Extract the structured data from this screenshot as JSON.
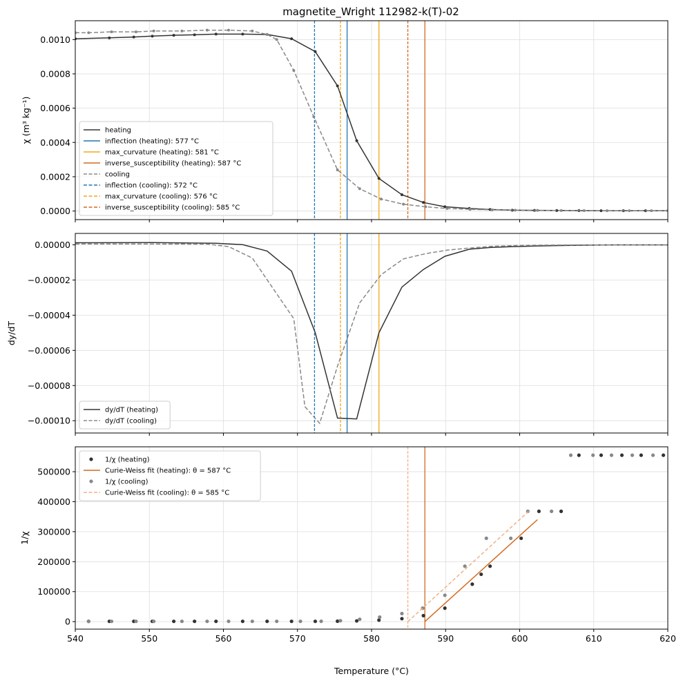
{
  "figure": {
    "title": "magnetite_Wright 112982-k(T)-02"
  },
  "colors": {
    "heating": "#333333",
    "cooling": "#888888",
    "inflection": "#1f77b4",
    "max_curvature": "#f0a818",
    "inverse_susceptibility": "#d2691e",
    "cw_cooling": "#f0b088",
    "grid": "#dddddd"
  },
  "chart_data": [
    {
      "type": "line",
      "ylabel": "χ (m³ kg⁻¹)",
      "xlim": [
        540,
        620
      ],
      "ylim": [
        -5e-05,
        0.00111
      ],
      "yticks": [
        0.0,
        0.0002,
        0.0004,
        0.0006,
        0.0008,
        0.001
      ],
      "ytick_labels": [
        "0.0000",
        "0.0002",
        "0.0004",
        "0.0006",
        "0.0008",
        "0.0010"
      ],
      "grid": true,
      "legend_position": "lower-left",
      "series": [
        {
          "name": "heating",
          "kind": "line-markers",
          "x": [
            540,
            544.6,
            547.9,
            550.4,
            553.3,
            556.1,
            559,
            562.6,
            565.9,
            569.2,
            572.4,
            575.4,
            578,
            581,
            584.1,
            587,
            589.9,
            593.2,
            596,
            599,
            602,
            605,
            608,
            611,
            614,
            617,
            620
          ],
          "y": [
            0.001005,
            0.00101,
            0.001015,
            0.00102,
            0.001025,
            0.001028,
            0.001032,
            0.001032,
            0.00103,
            0.001005,
            0.00093,
            0.00073,
            0.00041,
            0.00019,
            9.5e-05,
            5e-05,
            2.5e-05,
            1.5e-05,
            9e-06,
            5e-06,
            4e-06,
            3e-06,
            2.5e-06,
            2e-06,
            2e-06,
            2e-06,
            2e-06
          ]
        },
        {
          "name": "cooling",
          "kind": "dashed-markers",
          "x": [
            540,
            541.8,
            544.9,
            548.2,
            550.6,
            554.4,
            557.8,
            560.7,
            563.9,
            565.9,
            567.2,
            569.5,
            572.2,
            575.4,
            578.4,
            581.3,
            584.3,
            587.3,
            590.2,
            593.3,
            596.3,
            599.4,
            602.4,
            605.6,
            608.7,
            611.8,
            614.8,
            617.8,
            620
          ],
          "y": [
            0.00104,
            0.00104,
            0.001045,
            0.001045,
            0.00105,
            0.00105,
            0.001055,
            0.001055,
            0.00105,
            0.00103,
            0.001,
            0.00082,
            0.00055,
            0.00024,
            0.00013,
            7e-05,
            4e-05,
            2.5e-05,
            1.5e-05,
            1e-05,
            7e-06,
            5e-06,
            4e-06,
            3e-06,
            2.5e-06,
            2e-06,
            2e-06,
            2e-06,
            2e-06
          ]
        }
      ],
      "vlines": [
        {
          "name": "inflection (heating): 577 °C",
          "x": 576.7,
          "color": "inflection",
          "dashed": false
        },
        {
          "name": "max_curvature (heating): 581 °C",
          "x": 581,
          "color": "max_curvature",
          "dashed": false
        },
        {
          "name": "inverse_susceptibility (heating): 587 °C",
          "x": 587.2,
          "color": "inverse_susceptibility",
          "dashed": false
        },
        {
          "name": "inflection (cooling): 572 °C",
          "x": 572.3,
          "color": "inflection",
          "dashed": true
        },
        {
          "name": "max_curvature (cooling): 576 °C",
          "x": 575.8,
          "color": "max_curvature",
          "dashed": true
        },
        {
          "name": "inverse_susceptibility (cooling): 585 °C",
          "x": 584.9,
          "color": "inverse_susceptibility",
          "dashed": true
        }
      ],
      "legend": [
        {
          "label": "heating",
          "color": "heating",
          "style": "solid"
        },
        {
          "label": "inflection (heating): 577 °C",
          "color": "inflection",
          "style": "solid"
        },
        {
          "label": "max_curvature (heating): 581 °C",
          "color": "max_curvature",
          "style": "solid"
        },
        {
          "label": "inverse_susceptibility (heating): 587 °C",
          "color": "inverse_susceptibility",
          "style": "solid"
        },
        {
          "label": "cooling",
          "color": "cooling",
          "style": "dashed"
        },
        {
          "label": "inflection (cooling): 572 °C",
          "color": "inflection",
          "style": "dashed"
        },
        {
          "label": "max_curvature (cooling): 576 °C",
          "color": "max_curvature",
          "style": "dashed"
        },
        {
          "label": "inverse_susceptibility (cooling): 585 °C",
          "color": "inverse_susceptibility",
          "style": "dashed"
        }
      ]
    },
    {
      "type": "line",
      "ylabel": "dy/dT",
      "xlim": [
        540,
        620
      ],
      "ylim": [
        -0.000107,
        6.5e-06
      ],
      "yticks": [
        0.0,
        -2e-05,
        -4e-05,
        -6e-05,
        -8e-05,
        -0.0001
      ],
      "ytick_labels": [
        "0.00000",
        "−0.00002",
        "−0.00004",
        "−0.00006",
        "−0.00008",
        "−0.00010"
      ],
      "grid": true,
      "legend_position": "lower-left",
      "series": [
        {
          "name": "dy/dT (heating)",
          "kind": "line",
          "x": [
            540,
            550.5,
            559,
            562.6,
            565.9,
            569.2,
            572.4,
            575.4,
            578,
            581,
            584.1,
            587,
            589.9,
            593.2,
            596,
            599,
            602,
            605,
            608,
            611,
            614,
            617,
            620
          ],
          "y": [
            1.2e-06,
            1.3e-06,
            9e-07,
            1e-07,
            -3.5e-06,
            -1.5e-05,
            -5e-05,
            -9.85e-05,
            -9.9e-05,
            -5e-05,
            -2.4e-05,
            -1.4e-05,
            -6.5e-06,
            -2.5e-06,
            -1.5e-06,
            -1e-06,
            -7e-07,
            -4e-07,
            -2e-07,
            -1e-07,
            0,
            0,
            0
          ]
        },
        {
          "name": "dy/dT (cooling)",
          "kind": "dashed",
          "x": [
            540,
            550.6,
            557.8,
            560.7,
            563.9,
            566.9,
            569.5,
            571,
            573,
            575.4,
            578.4,
            581.3,
            584.3,
            587.3,
            590.2,
            593.3,
            596.3,
            599.4,
            602.4,
            605.6,
            608.7,
            611.8,
            614.8,
            617.8,
            620
          ],
          "y": [
            5e-07,
            5e-07,
            4e-07,
            -1e-06,
            -7.5e-06,
            -2.6e-05,
            -4.2e-05,
            -9.2e-05,
            -0.0001015,
            -6.9e-05,
            -3.3e-05,
            -1.7e-05,
            -8e-06,
            -5e-06,
            -3e-06,
            -1.8e-06,
            -8e-07,
            -4e-07,
            -2e-07,
            -1e-07,
            0,
            0,
            0,
            0,
            0
          ]
        }
      ],
      "vlines": [
        {
          "x": 576.7,
          "color": "inflection",
          "dashed": false
        },
        {
          "x": 581,
          "color": "max_curvature",
          "dashed": false
        },
        {
          "x": 572.3,
          "color": "inflection",
          "dashed": true
        },
        {
          "x": 575.8,
          "color": "max_curvature",
          "dashed": true
        }
      ],
      "legend": [
        {
          "label": "dy/dT (heating)",
          "color": "heating",
          "style": "solid"
        },
        {
          "label": "dy/dT (cooling)",
          "color": "cooling",
          "style": "dashed"
        }
      ]
    },
    {
      "type": "scatter",
      "ylabel": "1/χ",
      "xlabel": "Temperature (°C)",
      "xlim": [
        540,
        620
      ],
      "ylim": [
        -25000,
        583000
      ],
      "xticks": [
        540,
        550,
        560,
        570,
        580,
        590,
        600,
        610,
        620
      ],
      "yticks": [
        0,
        100000,
        200000,
        300000,
        400000,
        500000
      ],
      "ytick_labels": [
        "0",
        "100000",
        "200000",
        "300000",
        "400000",
        "500000"
      ],
      "grid": true,
      "legend_position": "upper-left",
      "series": [
        {
          "name": "1/χ (heating)",
          "kind": "points",
          "color": "heating",
          "x": [
            541.8,
            544.6,
            547.9,
            550.4,
            553.3,
            556.1,
            559,
            562.6,
            565.9,
            569.2,
            572.4,
            575.4,
            578,
            581,
            584.1,
            587,
            589.9,
            593.6,
            594.8,
            596,
            600.2,
            602.6,
            605.6,
            608,
            611,
            613.8,
            616.4,
            619.4
          ],
          "y": [
            1000,
            1000,
            1000,
            1000,
            1000,
            1000,
            1000,
            1000,
            1000,
            1000,
            1000,
            1500,
            2500,
            5000,
            10000,
            20000,
            45000,
            125000,
            158000,
            185000,
            278000,
            368000,
            368000,
            555000,
            555000,
            555000,
            555000,
            555000
          ]
        },
        {
          "name": "1/χ (cooling)",
          "kind": "points",
          "color": "cooling",
          "x": [
            541.8,
            544.9,
            548.2,
            550.6,
            554.4,
            557.8,
            560.7,
            563.9,
            567.2,
            570.4,
            573.2,
            575.8,
            578.4,
            581.1,
            584.1,
            586.9,
            589.9,
            592.6,
            595.5,
            598.8,
            601.1,
            604.3,
            606.9,
            609.9,
            612.4,
            615.2,
            618
          ],
          "y": [
            1000,
            1000,
            1000,
            1000,
            1000,
            1000,
            1000,
            1000,
            1000,
            1000,
            1200,
            3000,
            8000,
            15000,
            27000,
            45000,
            88000,
            185000,
            278000,
            278000,
            368000,
            368000,
            555000,
            555000,
            555000,
            555000,
            555000
          ]
        },
        {
          "name": "Curie-Weiss fit (heating): θ = 587 °C",
          "kind": "fit-line",
          "color": "inverse_susceptibility",
          "x": [
            587.2,
            602.4
          ],
          "y": [
            0,
            340000
          ]
        },
        {
          "name": "Curie-Weiss fit (cooling): θ = 585 °C",
          "kind": "fit-dashed",
          "color": "cw_cooling",
          "x": [
            584.9,
            601.2
          ],
          "y": [
            0,
            368000
          ]
        }
      ],
      "vlines": [
        {
          "x": 587.2,
          "color": "inverse_susceptibility",
          "dashed": false
        },
        {
          "x": 584.9,
          "color": "cw_cooling",
          "dashed": true
        }
      ],
      "legend": [
        {
          "label": "1/χ (heating)",
          "color": "heating",
          "style": "point"
        },
        {
          "label": "Curie-Weiss fit (heating): θ = 587 °C",
          "color": "inverse_susceptibility",
          "style": "solid"
        },
        {
          "label": "1/χ (cooling)",
          "color": "cooling",
          "style": "point"
        },
        {
          "label": "Curie-Weiss fit (cooling): θ = 585 °C",
          "color": "cw_cooling",
          "style": "dashed"
        }
      ]
    }
  ]
}
